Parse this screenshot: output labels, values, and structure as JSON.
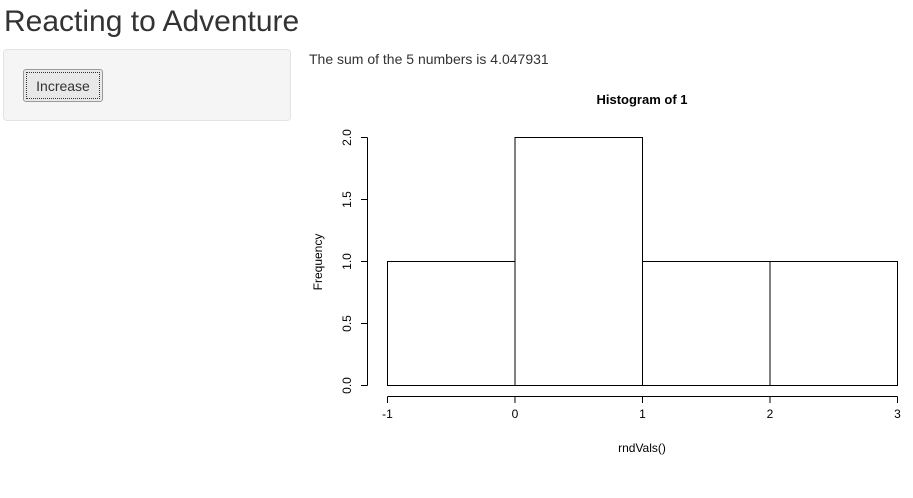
{
  "app": {
    "title": "Reacting to Adventure"
  },
  "sidebar": {
    "increase_label": "Increase"
  },
  "main": {
    "sum_text": "The sum of the 5 numbers is 4.047931"
  },
  "chart_data": {
    "type": "bar",
    "title": "Histogram of 1",
    "xlabel": "rndVals()",
    "ylabel": "Frequency",
    "bins": [
      [
        -1,
        0
      ],
      [
        0,
        1
      ],
      [
        1,
        2
      ],
      [
        2,
        3
      ]
    ],
    "values": [
      1,
      2,
      1,
      1
    ],
    "xlim": [
      -1,
      3
    ],
    "ylim": [
      0,
      2
    ],
    "xticks": [
      -1,
      0,
      1,
      2,
      3
    ],
    "xtick_labels": [
      "-1",
      "0",
      "1",
      "2",
      "3"
    ],
    "yticks": [
      0,
      0.5,
      1,
      1.5,
      2
    ],
    "ytick_labels": [
      "0.0",
      "0.5",
      "1.0",
      "1.5",
      "2.0"
    ],
    "grid": false,
    "colors": {
      "bar_fill": "#ffffff",
      "bar_stroke": "#000000",
      "axis": "#000000"
    }
  }
}
